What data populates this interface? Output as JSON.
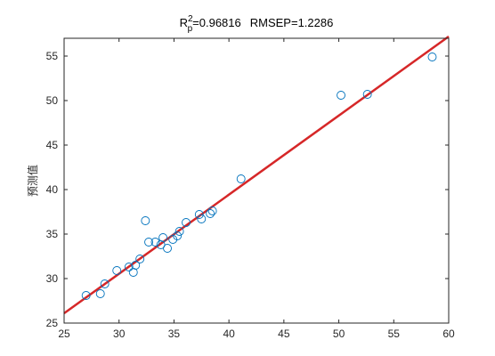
{
  "chart_data": {
    "type": "scatter",
    "title": {
      "r_base": "R",
      "r_sup": "2",
      "r_sub": "p",
      "r_value": "=0.96816",
      "rmsep": "RMSEP=1.2286"
    },
    "xlabel": "",
    "ylabel": "预测值",
    "xlim": [
      25,
      60
    ],
    "ylim": [
      25,
      57
    ],
    "xticks": [
      25,
      30,
      35,
      40,
      45,
      50,
      55,
      60
    ],
    "yticks": [
      25,
      30,
      35,
      40,
      45,
      50,
      55
    ],
    "grid": false,
    "marker": "open-circle",
    "colors": {
      "points": "#0072BD",
      "fit_line": "#D62728",
      "axes": "#262626"
    },
    "points": [
      {
        "x": 27.0,
        "y": 28.1
      },
      {
        "x": 28.3,
        "y": 28.3
      },
      {
        "x": 28.7,
        "y": 29.4
      },
      {
        "x": 29.8,
        "y": 30.9
      },
      {
        "x": 30.9,
        "y": 31.3
      },
      {
        "x": 31.3,
        "y": 30.7
      },
      {
        "x": 31.5,
        "y": 31.5
      },
      {
        "x": 31.9,
        "y": 32.2
      },
      {
        "x": 32.4,
        "y": 36.5
      },
      {
        "x": 32.7,
        "y": 34.1
      },
      {
        "x": 33.3,
        "y": 34.1
      },
      {
        "x": 33.8,
        "y": 33.8
      },
      {
        "x": 34.0,
        "y": 34.6
      },
      {
        "x": 34.4,
        "y": 33.4
      },
      {
        "x": 34.9,
        "y": 34.4
      },
      {
        "x": 35.3,
        "y": 34.8
      },
      {
        "x": 35.5,
        "y": 35.3
      },
      {
        "x": 36.1,
        "y": 36.3
      },
      {
        "x": 37.3,
        "y": 37.2
      },
      {
        "x": 37.5,
        "y": 36.7
      },
      {
        "x": 38.3,
        "y": 37.3
      },
      {
        "x": 38.5,
        "y": 37.6
      },
      {
        "x": 41.1,
        "y": 41.2
      },
      {
        "x": 50.2,
        "y": 50.6
      },
      {
        "x": 52.6,
        "y": 50.7
      },
      {
        "x": 58.5,
        "y": 54.9
      }
    ],
    "fit_line": {
      "x": [
        25,
        60
      ],
      "y": [
        26.1,
        57.2
      ]
    }
  }
}
